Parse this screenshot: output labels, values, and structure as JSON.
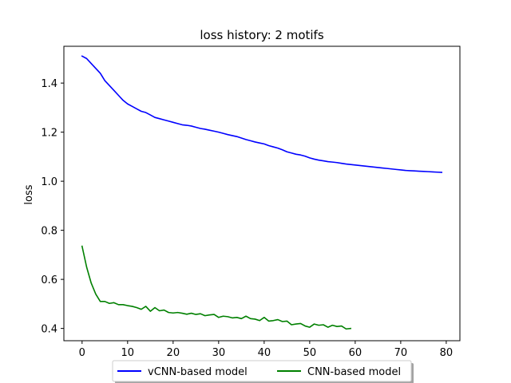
{
  "chart_data": {
    "type": "line",
    "title": "loss history:  2 motifs",
    "xlabel": "",
    "ylabel": "loss",
    "xlim": [
      -4,
      83
    ],
    "ylim": [
      0.35,
      1.55
    ],
    "x_ticks": [
      0,
      10,
      20,
      30,
      40,
      50,
      60,
      70,
      80
    ],
    "y_ticks": [
      0.4,
      0.6,
      0.8,
      1.0,
      1.2,
      1.4
    ],
    "y_tick_labels": [
      "0.4",
      "0.6",
      "0.8",
      "1.0",
      "1.2",
      "1.4"
    ],
    "grid": false,
    "legend_position": "bottom-center",
    "series": [
      {
        "name": "vCNN-based model",
        "color": "#0000ff",
        "x": [
          0,
          1,
          2,
          3,
          4,
          5,
          6,
          7,
          8,
          9,
          10,
          11,
          12,
          13,
          14,
          15,
          16,
          17,
          18,
          19,
          20,
          21,
          22,
          23,
          24,
          25,
          26,
          27,
          28,
          29,
          30,
          31,
          32,
          33,
          34,
          35,
          36,
          37,
          38,
          39,
          40,
          41,
          42,
          43,
          44,
          45,
          46,
          47,
          48,
          49,
          50,
          51,
          52,
          53,
          54,
          55,
          56,
          57,
          58,
          59,
          60,
          61,
          62,
          63,
          64,
          65,
          66,
          67,
          68,
          69,
          70,
          71,
          72,
          73,
          74,
          75,
          76,
          77,
          78,
          79
        ],
        "values": [
          1.51,
          1.5,
          1.48,
          1.46,
          1.44,
          1.41,
          1.39,
          1.37,
          1.35,
          1.33,
          1.315,
          1.305,
          1.295,
          1.285,
          1.28,
          1.27,
          1.26,
          1.255,
          1.25,
          1.245,
          1.24,
          1.235,
          1.23,
          1.228,
          1.225,
          1.22,
          1.215,
          1.212,
          1.208,
          1.204,
          1.2,
          1.195,
          1.19,
          1.186,
          1.182,
          1.176,
          1.17,
          1.165,
          1.16,
          1.156,
          1.152,
          1.145,
          1.14,
          1.135,
          1.128,
          1.12,
          1.115,
          1.11,
          1.107,
          1.102,
          1.095,
          1.09,
          1.086,
          1.083,
          1.08,
          1.078,
          1.076,
          1.073,
          1.07,
          1.068,
          1.066,
          1.064,
          1.062,
          1.06,
          1.058,
          1.056,
          1.054,
          1.052,
          1.05,
          1.048,
          1.046,
          1.044,
          1.043,
          1.042,
          1.041,
          1.04,
          1.039,
          1.038,
          1.037,
          1.036
        ]
      },
      {
        "name": "CNN-based model",
        "color": "#008000",
        "x": [
          0,
          1,
          2,
          3,
          4,
          5,
          6,
          7,
          8,
          9,
          10,
          11,
          12,
          13,
          14,
          15,
          16,
          17,
          18,
          19,
          20,
          21,
          22,
          23,
          24,
          25,
          26,
          27,
          28,
          29,
          30,
          31,
          32,
          33,
          34,
          35,
          36,
          37,
          38,
          39,
          40,
          41,
          42,
          43,
          44,
          45,
          46,
          47,
          48,
          49,
          50,
          51,
          52,
          53,
          54,
          55,
          56,
          57,
          58,
          59
        ],
        "values": [
          0.735,
          0.65,
          0.585,
          0.54,
          0.51,
          0.51,
          0.502,
          0.505,
          0.497,
          0.497,
          0.493,
          0.49,
          0.485,
          0.478,
          0.49,
          0.47,
          0.485,
          0.472,
          0.475,
          0.465,
          0.463,
          0.465,
          0.462,
          0.458,
          0.462,
          0.457,
          0.46,
          0.452,
          0.455,
          0.457,
          0.445,
          0.45,
          0.448,
          0.443,
          0.445,
          0.44,
          0.45,
          0.44,
          0.438,
          0.432,
          0.445,
          0.43,
          0.432,
          0.436,
          0.428,
          0.43,
          0.415,
          0.418,
          0.42,
          0.41,
          0.405,
          0.418,
          0.413,
          0.415,
          0.405,
          0.413,
          0.408,
          0.41,
          0.398,
          0.4
        ]
      }
    ]
  }
}
